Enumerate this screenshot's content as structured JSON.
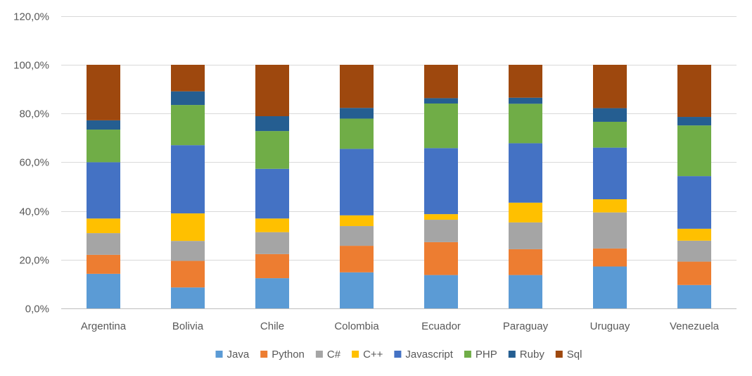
{
  "chart_data": {
    "type": "bar",
    "stacked": true,
    "title": "",
    "xlabel": "",
    "ylabel": "",
    "ylim": [
      0,
      120
    ],
    "yticks": [
      0,
      20,
      40,
      60,
      80,
      100,
      120
    ],
    "ytick_labels": [
      "0,0%",
      "20,0%",
      "40,0%",
      "60,0%",
      "80,0%",
      "100,0%",
      "120,0%"
    ],
    "grid": true,
    "legend_position": "bottom",
    "categories": [
      "Argentina",
      "Bolivia",
      "Chile",
      "Colombia",
      "Ecuador",
      "Paraguay",
      "Uruguay",
      "Venezuela"
    ],
    "series": [
      {
        "name": "Java",
        "color": "#5B9BD5",
        "values": [
          14.2,
          8.6,
          12.4,
          14.8,
          13.7,
          13.7,
          17.2,
          9.6
        ]
      },
      {
        "name": "Python",
        "color": "#ED7D31",
        "values": [
          7.8,
          10.9,
          9.9,
          10.9,
          13.5,
          10.6,
          7.4,
          9.6
        ]
      },
      {
        "name": "C#",
        "color": "#A5A5A5",
        "values": [
          8.9,
          8.2,
          9.0,
          8.1,
          9.2,
          11.0,
          14.8,
          8.6
        ]
      },
      {
        "name": "C++",
        "color": "#FFC000",
        "values": [
          6.0,
          11.3,
          5.6,
          4.4,
          2.3,
          8.1,
          5.4,
          4.9
        ]
      },
      {
        "name": "Javascript",
        "color": "#4472C4",
        "values": [
          23.1,
          28.0,
          20.4,
          27.3,
          27.1,
          24.4,
          21.2,
          21.6
        ]
      },
      {
        "name": "PHP",
        "color": "#70AD47",
        "values": [
          13.4,
          16.5,
          15.5,
          12.4,
          18.3,
          16.2,
          10.6,
          20.8
        ]
      },
      {
        "name": "Ruby",
        "color": "#255E91",
        "values": [
          3.8,
          5.6,
          6.1,
          4.4,
          2.2,
          2.5,
          5.6,
          3.5
        ]
      },
      {
        "name": "Sql",
        "color": "#9E480E",
        "values": [
          22.8,
          10.9,
          21.1,
          17.7,
          13.7,
          13.5,
          17.8,
          21.4
        ]
      }
    ]
  }
}
